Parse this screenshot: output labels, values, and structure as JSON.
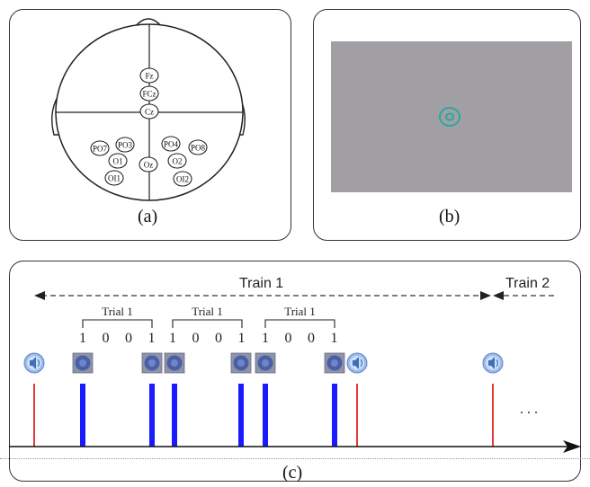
{
  "panel_a": {
    "caption": "(a)",
    "electrodes": [
      "Fz",
      "FCz",
      "Cz",
      "PO7",
      "PO3",
      "PO4",
      "PO8",
      "O1",
      "Oz",
      "O2",
      "OI1",
      "OI2"
    ]
  },
  "panel_b": {
    "caption": "(b)",
    "screen_color": "#a19fa3",
    "target_color": "#2aa7a4"
  },
  "panel_c": {
    "caption": "(c)",
    "train1_label": "Train 1",
    "train2_label": "Train 2",
    "trial_label": "Trial 1",
    "trial_codes": [
      [
        "1",
        "0",
        "0",
        "1"
      ],
      [
        "1",
        "0",
        "0",
        "1"
      ],
      [
        "1",
        "0",
        "0",
        "1"
      ]
    ],
    "ellipsis": ". . .",
    "colors": {
      "audio_line": "#e53935",
      "visual_bar": "#1a1aff",
      "speaker": "#9bbbe8"
    }
  }
}
